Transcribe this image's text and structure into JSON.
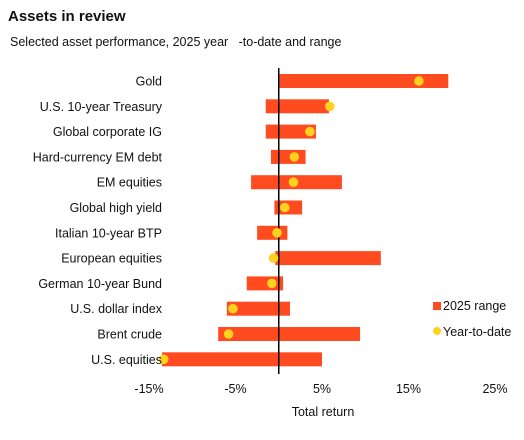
{
  "title": "Assets in review",
  "subtitle": "Selected asset performance, 2025 year   -to-date and range",
  "chart_data": {
    "type": "bar",
    "orientation": "horizontal-range",
    "title": "Assets in review",
    "subtitle": "Selected asset performance, 2025 year   -to-date and range",
    "xlabel": "Total return",
    "ylabel": "",
    "xlim": [
      -15,
      25
    ],
    "xticks": [
      "-15%",
      "-5%",
      "5%",
      "15%",
      "25%"
    ],
    "xtick_values": [
      -15,
      -5,
      5,
      15,
      25
    ],
    "categories": [
      "Gold",
      "U.S. 10-year Treasury",
      "Global corporate IG",
      "Hard-currency EM debt",
      "EM equities",
      "Global high yield",
      "Italian 10-year BTP",
      "European equities",
      "German 10-year Bund",
      "U.S. dollar index",
      "Brent crude",
      "U.S. equities"
    ],
    "series": [
      {
        "name": "2025 range",
        "color": "#ff4b1f",
        "ranges": [
          [
            0.1,
            19.6
          ],
          [
            -1.5,
            5.8
          ],
          [
            -1.5,
            4.3
          ],
          [
            -0.9,
            3.1
          ],
          [
            -3.2,
            7.3
          ],
          [
            -0.5,
            2.7
          ],
          [
            -2.5,
            1.0
          ],
          [
            -0.4,
            11.8
          ],
          [
            -3.7,
            0.5
          ],
          [
            -6.0,
            1.3
          ],
          [
            -7.0,
            9.4
          ],
          [
            -13.5,
            5.0
          ]
        ]
      },
      {
        "name": "Year-to-date",
        "color": "#ffd21f",
        "values": [
          16.2,
          5.9,
          3.6,
          1.8,
          1.7,
          0.7,
          -0.2,
          -0.6,
          -0.8,
          -5.3,
          -5.8,
          -13.3
        ]
      }
    ],
    "zero_line": true,
    "grid": false,
    "legend_position": "bottom-right"
  }
}
